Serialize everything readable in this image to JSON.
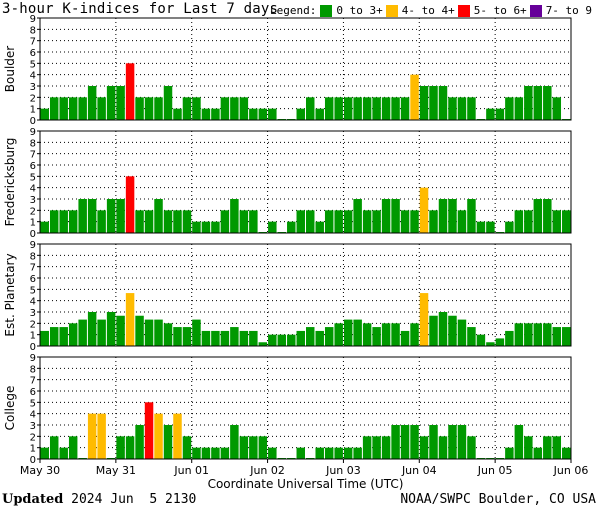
{
  "header": {
    "title": "3-hour K-indices for Last 7 days",
    "legend_label": "Legend:",
    "legend": [
      {
        "label": "0 to 3+",
        "color": "#009900"
      },
      {
        "label": "4- to 4+",
        "color": "#ffbb00"
      },
      {
        "label": "5- to 6+",
        "color": "#ff0000"
      },
      {
        "label": "7- to 9",
        "color": "#660099"
      }
    ]
  },
  "footer": {
    "updated_label": "Updated",
    "updated_value": "2024 Jun  5 2130",
    "credit": "NOAA/SWPC Boulder, CO USA"
  },
  "chart_data": {
    "type": "bar",
    "xlabel": "Coordinate Universal Time (UTC)",
    "x_ticks": [
      "May 30",
      "May 31",
      "Jun 01",
      "Jun 02",
      "Jun 03",
      "Jun 04",
      "Jun 05",
      "Jun 06"
    ],
    "y_ticks": [
      "0",
      "1",
      "2",
      "3",
      "4",
      "5",
      "6",
      "7",
      "8",
      "9"
    ],
    "ylim": [
      0,
      9
    ],
    "grid": true,
    "panels": [
      {
        "name": "Boulder",
        "values": [
          1,
          2,
          2,
          2,
          2,
          3,
          2,
          3,
          3,
          5,
          2,
          2,
          2,
          3,
          1,
          2,
          2,
          1,
          1,
          2,
          2,
          2,
          1,
          1,
          1,
          0,
          0,
          1,
          2,
          1,
          2,
          2,
          2,
          2,
          2,
          2,
          2,
          2,
          2,
          4,
          3,
          3,
          3,
          2,
          2,
          2,
          0,
          1,
          1,
          2,
          2,
          3,
          3,
          3,
          2,
          0
        ]
      },
      {
        "name": "Fredericksburg",
        "values": [
          1,
          2,
          2,
          2,
          3,
          3,
          2,
          3,
          3,
          5,
          2,
          2,
          3,
          2,
          2,
          2,
          1,
          1,
          1,
          2,
          3,
          2,
          2,
          0,
          1,
          0,
          1,
          2,
          2,
          1,
          2,
          2,
          2,
          3,
          2,
          2,
          3,
          3,
          2,
          2,
          4,
          2,
          3,
          3,
          2,
          3,
          1,
          1,
          0,
          1,
          2,
          2,
          3,
          3,
          2,
          2
        ]
      },
      {
        "name": "Est. Planetary",
        "values": [
          1.33,
          1.67,
          1.67,
          2,
          2.33,
          3,
          2.33,
          3,
          2.67,
          4.67,
          2.67,
          2.33,
          2.33,
          2,
          1.67,
          1.67,
          2.33,
          1.33,
          1.33,
          1.33,
          1.67,
          1.33,
          1.33,
          0.33,
          1,
          1,
          1,
          1.33,
          1.67,
          1.33,
          1.67,
          2,
          2.33,
          2.33,
          2,
          1.67,
          2,
          2,
          1.33,
          2,
          4.67,
          2.67,
          3,
          2.67,
          2.33,
          1.67,
          1,
          0.33,
          0.67,
          1.33,
          2,
          2,
          2,
          2,
          1.67,
          1.67
        ]
      },
      {
        "name": "College",
        "values": [
          1,
          2,
          1,
          2,
          0,
          4,
          4,
          0,
          2,
          2,
          3,
          5,
          4,
          3,
          4,
          2,
          1,
          1,
          1,
          1,
          3,
          2,
          2,
          2,
          1,
          0,
          0,
          1,
          0,
          1,
          1,
          1,
          1,
          1,
          2,
          2,
          2,
          3,
          3,
          3,
          2,
          3,
          2,
          3,
          3,
          2,
          0,
          0,
          0,
          1,
          3,
          2,
          1,
          2,
          2,
          1
        ]
      }
    ]
  }
}
